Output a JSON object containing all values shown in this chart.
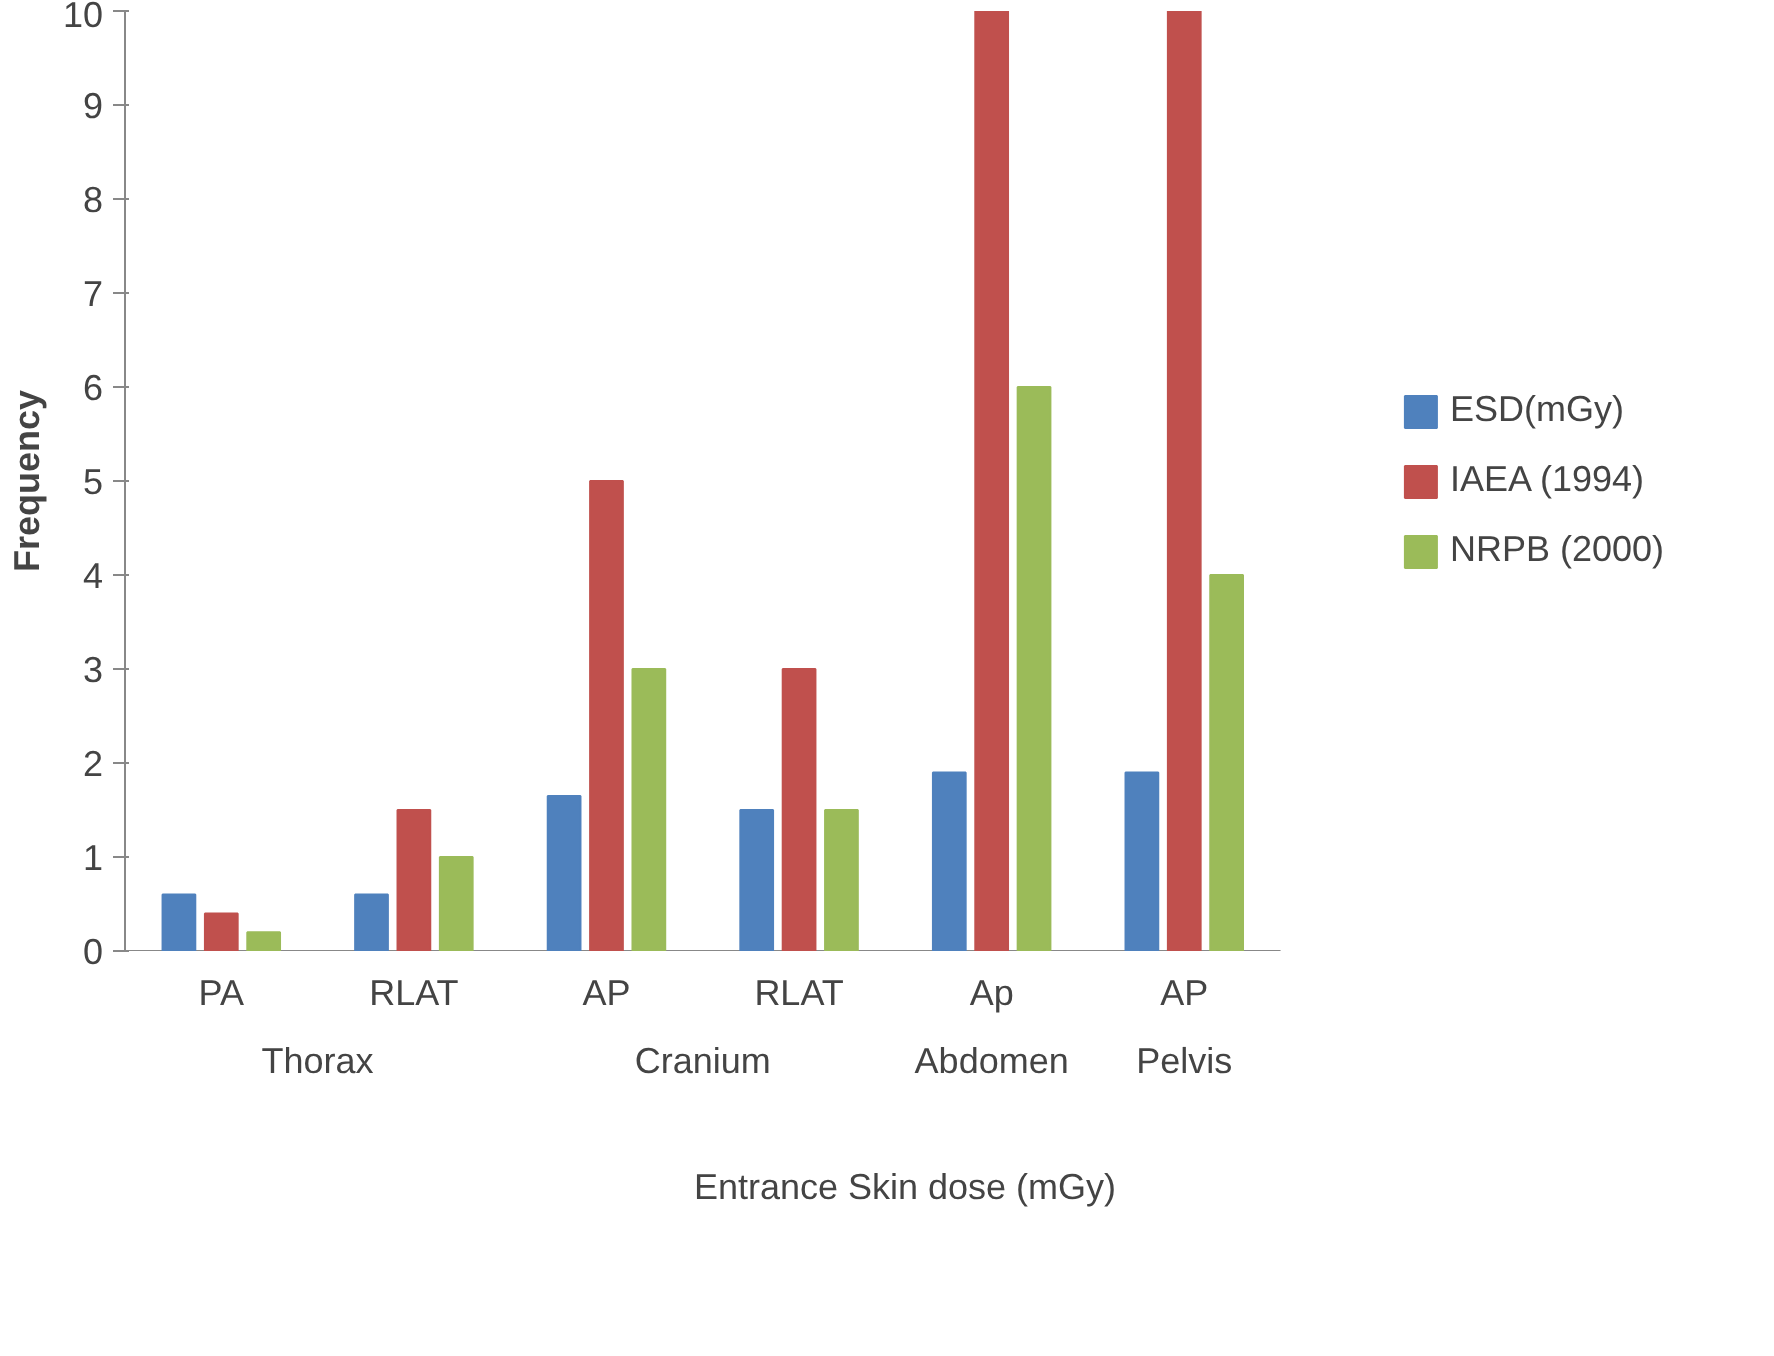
{
  "chart_data": {
    "type": "bar",
    "xlabel": "Entrance Skin dose (mGy)",
    "ylabel": "Frequency",
    "categories": [
      "PA",
      "RLAT",
      "AP",
      "RLAT",
      "Ap",
      "AP"
    ],
    "series": [
      {
        "name": "ESD(mGy)",
        "color": "#4f81bd",
        "values": [
          0.6,
          0.6,
          1.65,
          1.5,
          1.9,
          1.9
        ]
      },
      {
        "name": "IAEA (1994)",
        "color": "#c0504d",
        "values": [
          0.4,
          1.5,
          5,
          3,
          10,
          10
        ]
      },
      {
        "name": "NRPB (2000)",
        "color": "#9bbb59",
        "values": [
          0.2,
          1,
          3,
          1.5,
          6,
          4
        ]
      }
    ],
    "annotations": [
      "Thorax",
      "Cranium",
      "Abdomen",
      "Pelvis"
    ],
    "ylim": [
      0,
      10
    ],
    "yticks": [
      0,
      1,
      2,
      3,
      4,
      5,
      6,
      7,
      8,
      9,
      10
    ],
    "grid": false,
    "legend": "right"
  }
}
